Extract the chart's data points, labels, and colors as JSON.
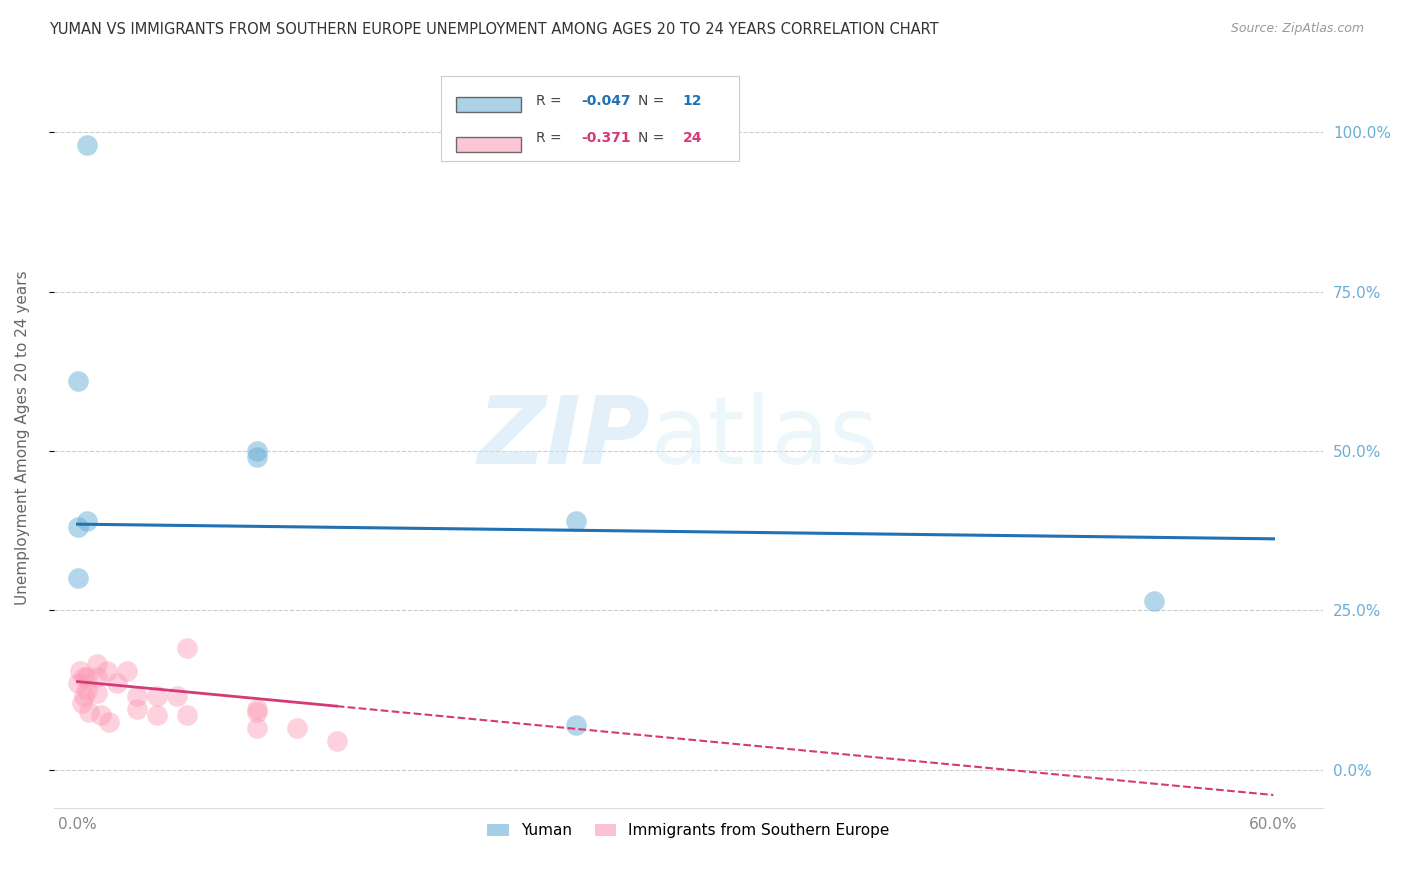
{
  "title": "YUMAN VS IMMIGRANTS FROM SOUTHERN EUROPE UNEMPLOYMENT AMONG AGES 20 TO 24 YEARS CORRELATION CHART",
  "source": "Source: ZipAtlas.com",
  "ylabel": "Unemployment Among Ages 20 to 24 years",
  "x_ticks": [
    0.0,
    0.1,
    0.2,
    0.3,
    0.4,
    0.5,
    0.6
  ],
  "x_tick_labels": [
    "0.0%",
    "",
    "",
    "",
    "",
    "",
    "60.0%"
  ],
  "y_ticks": [
    0.0,
    0.25,
    0.5,
    0.75,
    1.0
  ],
  "y_tick_labels_right": [
    "0.0%",
    "25.0%",
    "50.0%",
    "75.0%",
    "100.0%"
  ],
  "legend_blue_label": "Yuman",
  "legend_pink_label": "Immigrants from Southern Europe",
  "r_blue": -0.047,
  "n_blue": 12,
  "r_pink": -0.371,
  "n_pink": 24,
  "blue_scatter_x": [
    0.005,
    0.0,
    0.09,
    0.09,
    0.0,
    0.0,
    0.005,
    0.25,
    0.54,
    0.25
  ],
  "blue_scatter_y": [
    0.98,
    0.61,
    0.5,
    0.49,
    0.38,
    0.3,
    0.39,
    0.39,
    0.265,
    0.07
  ],
  "pink_scatter_x": [
    0.0,
    0.001,
    0.002,
    0.003,
    0.003,
    0.005,
    0.005,
    0.006,
    0.01,
    0.01,
    0.01,
    0.012,
    0.015,
    0.016,
    0.02,
    0.025,
    0.03,
    0.03,
    0.04,
    0.04,
    0.05,
    0.055,
    0.055,
    0.09,
    0.09,
    0.09,
    0.11,
    0.13
  ],
  "pink_scatter_y": [
    0.135,
    0.155,
    0.105,
    0.145,
    0.115,
    0.145,
    0.125,
    0.09,
    0.165,
    0.145,
    0.12,
    0.085,
    0.155,
    0.075,
    0.135,
    0.155,
    0.115,
    0.095,
    0.115,
    0.085,
    0.115,
    0.19,
    0.085,
    0.095,
    0.09,
    0.065,
    0.065,
    0.045
  ],
  "blue_line_x0": 0.0,
  "blue_line_x1": 0.6,
  "blue_line_y0": 0.385,
  "blue_line_y1": 0.362,
  "pink_line_x0": 0.0,
  "pink_line_x1": 0.6,
  "pink_line_y0": 0.138,
  "pink_line_y1": -0.04,
  "xlim": [
    -0.012,
    0.625
  ],
  "ylim": [
    -0.06,
    1.1
  ],
  "background_color": "#ffffff",
  "blue_color": "#6baed6",
  "blue_line_color": "#2171b5",
  "pink_color": "#fb9ab4",
  "pink_line_color": "#d63977",
  "grid_color": "#cccccc",
  "watermark_zip": "ZIP",
  "watermark_atlas": "atlas",
  "title_color": "#333333",
  "right_axis_color": "#6baed6",
  "axis_text_color": "#888888"
}
